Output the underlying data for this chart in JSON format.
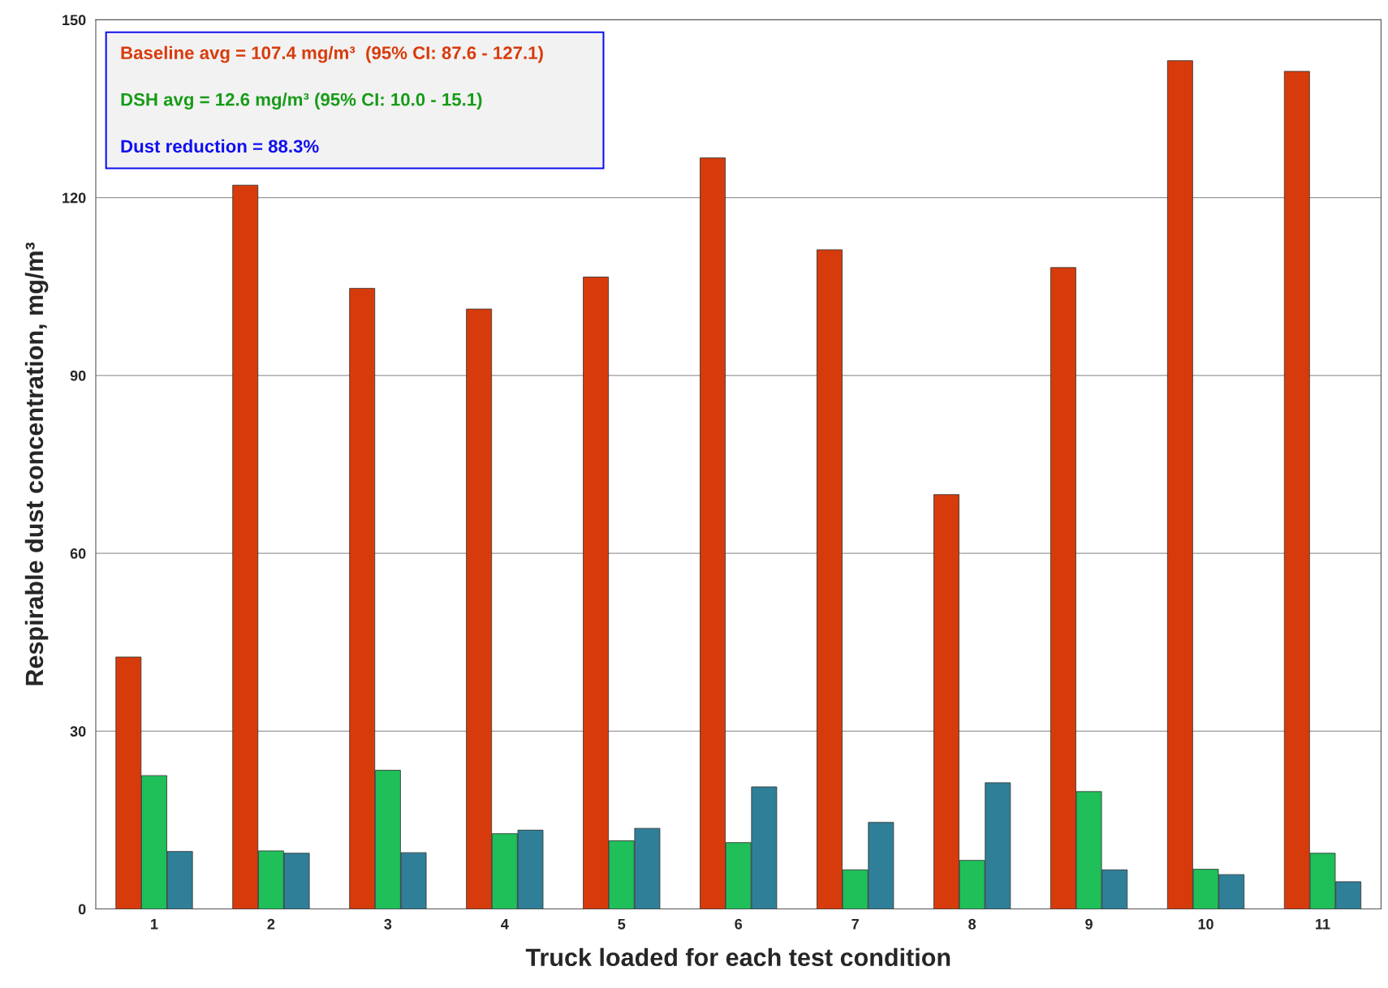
{
  "chart_data": {
    "type": "bar",
    "xlabel": "Truck loaded for each test condition",
    "ylabel": "Respirable dust concentration, mg/m³",
    "categories": [
      "1",
      "2",
      "3",
      "4",
      "5",
      "6",
      "7",
      "8",
      "9",
      "10",
      "11"
    ],
    "series": [
      {
        "color": "#d83b0b",
        "values": [
          42.5,
          122.1,
          104.7,
          101.2,
          106.6,
          126.7,
          111.2,
          69.9,
          108.2,
          143.1,
          141.3
        ]
      },
      {
        "color": "#1fbf5a",
        "values": [
          22.5,
          9.8,
          23.4,
          12.7,
          11.5,
          11.2,
          6.6,
          8.2,
          19.8,
          6.7,
          9.4
        ]
      },
      {
        "color": "#2f7f98",
        "values": [
          9.7,
          9.4,
          9.5,
          13.3,
          13.6,
          20.6,
          14.6,
          21.3,
          6.6,
          5.8,
          4.6
        ]
      }
    ],
    "ylim": [
      0,
      150
    ],
    "yticks": [
      0,
      30,
      60,
      90,
      120,
      150
    ],
    "grid": "y",
    "legend": false,
    "annotations": [
      "Baseline avg = 107.4 mg/m³  (95% CI: 87.6 - 127.1)",
      "DSH avg = 12.6 mg/m³ (95% CI: 10.0 - 15.1)",
      "Dust reduction = 88.3%"
    ]
  }
}
